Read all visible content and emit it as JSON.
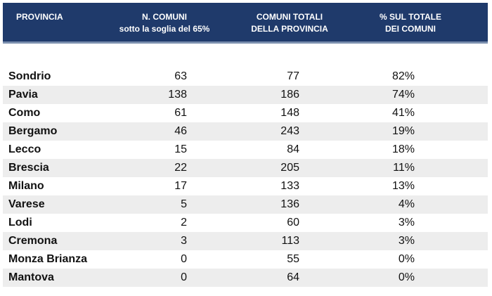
{
  "table": {
    "headers": {
      "provincia": "PROVINCIA",
      "n_comuni_l1": "N. COMUNI",
      "n_comuni_l2": "sotto la soglia del 65%",
      "totali_l1": "COMUNI TOTALI",
      "totali_l2": "DELLA PROVINCIA",
      "pct_l1": "% SUL TOTALE",
      "pct_l2": "DEI COMUNI"
    },
    "rows": [
      {
        "name": "Sondrio",
        "n": "63",
        "tot": "77",
        "pct": "82%"
      },
      {
        "name": "Pavia",
        "n": "138",
        "tot": "186",
        "pct": "74%"
      },
      {
        "name": "Como",
        "n": "61",
        "tot": "148",
        "pct": "41%"
      },
      {
        "name": "Bergamo",
        "n": "46",
        "tot": "243",
        "pct": "19%"
      },
      {
        "name": "Lecco",
        "n": "15",
        "tot": "84",
        "pct": "18%"
      },
      {
        "name": "Brescia",
        "n": "22",
        "tot": "205",
        "pct": "11%"
      },
      {
        "name": "Milano",
        "n": "17",
        "tot": "133",
        "pct": "13%"
      },
      {
        "name": "Varese",
        "n": "5",
        "tot": "136",
        "pct": "4%"
      },
      {
        "name": "Lodi",
        "n": "2",
        "tot": "60",
        "pct": "3%"
      },
      {
        "name": "Cremona",
        "n": "3",
        "tot": "113",
        "pct": "3%"
      },
      {
        "name": "Monza Brianza",
        "n": "0",
        "tot": "55",
        "pct": "0%"
      },
      {
        "name": "Mantova",
        "n": "0",
        "tot": "64",
        "pct": "0%"
      }
    ]
  },
  "colors": {
    "header_bg": "#1f3a6b",
    "header_border": "#7b8fae",
    "stripe": "#ededed"
  }
}
